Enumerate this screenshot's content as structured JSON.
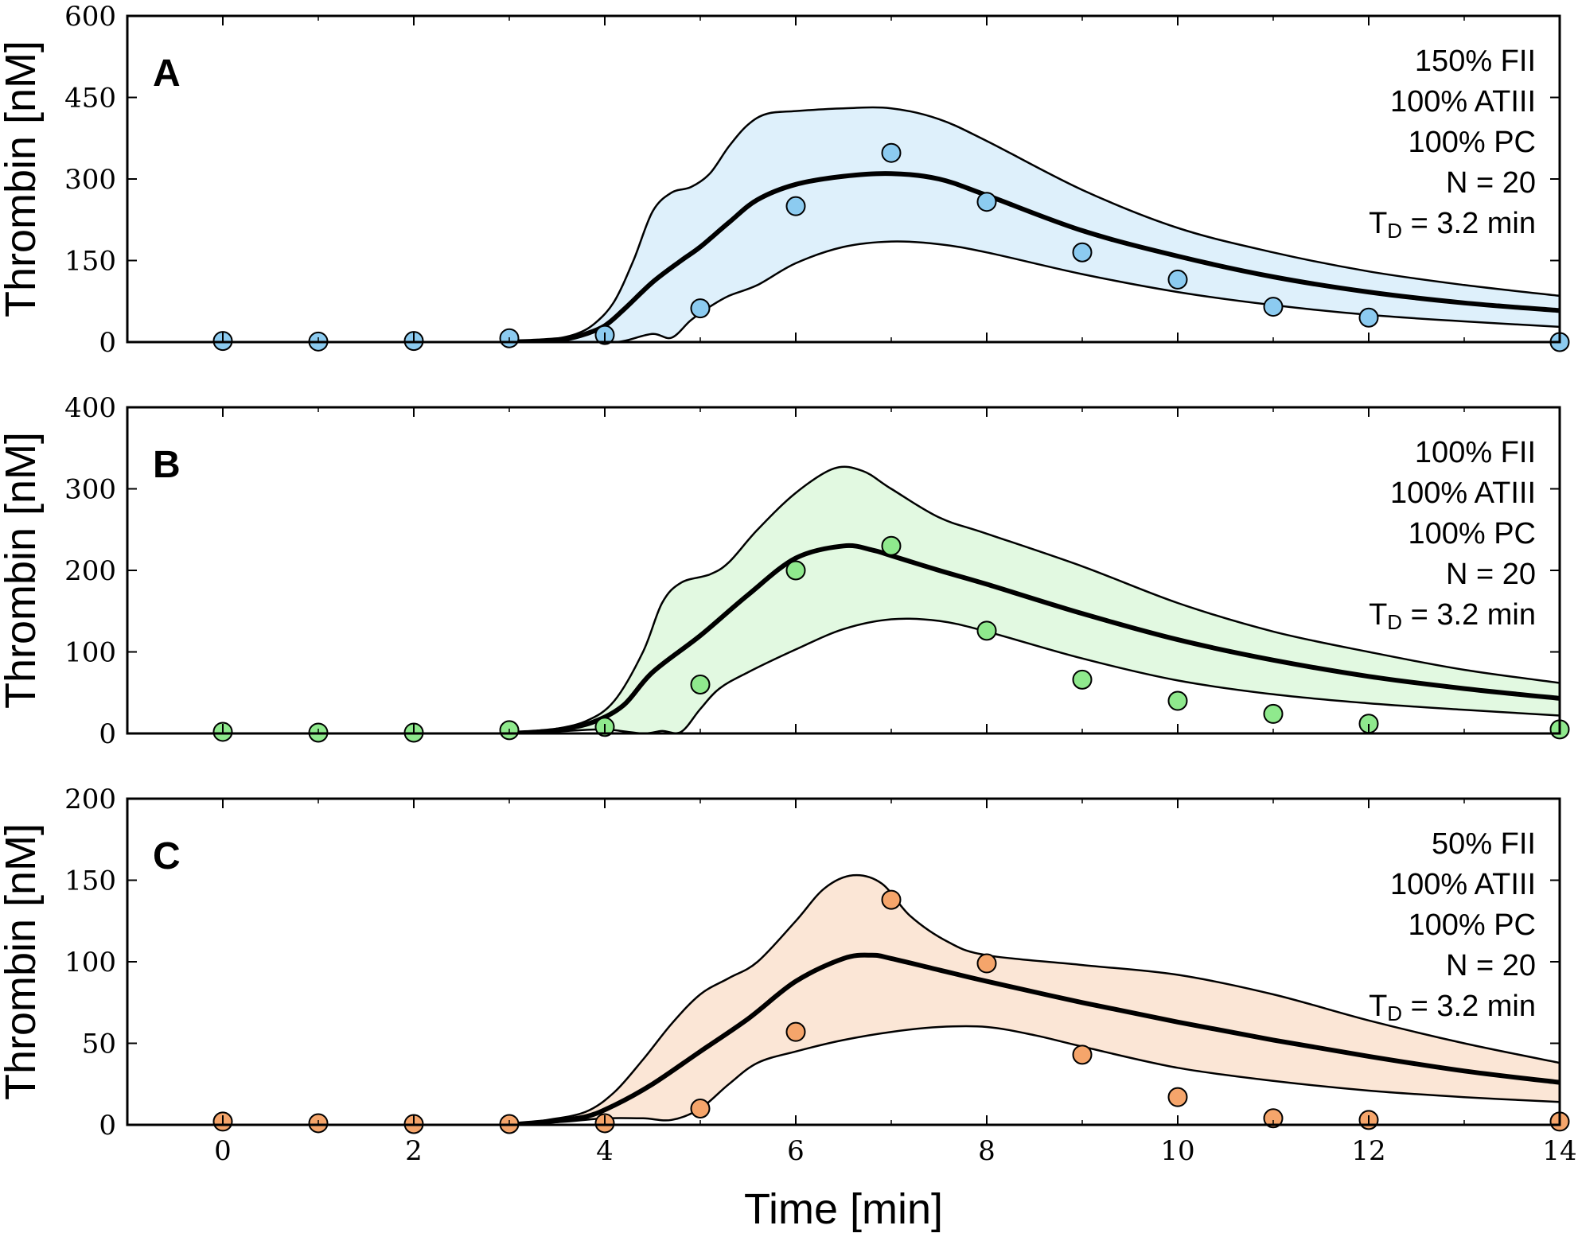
{
  "figure": {
    "xlabel": "Time [min]",
    "ylabel": "Thrombin [nM]"
  },
  "chart_data": [
    {
      "type": "line",
      "panel_label": "A",
      "xlabel": "Time [min]",
      "ylabel": "Thrombin [nM]",
      "xlim": [
        -1,
        14
      ],
      "ylim": [
        0,
        600
      ],
      "xticks": [
        "0",
        "2",
        "4",
        "6",
        "8",
        "10",
        "12",
        "14"
      ],
      "yticks": [
        "0",
        "150",
        "300",
        "450",
        "600"
      ],
      "grid": false,
      "colors": {
        "fill": "#def0fb",
        "marker": "#8ccbf0",
        "line": "#000000"
      },
      "annotations": {
        "fii": "150% FII",
        "atiii": "100% ATIII",
        "pc": "100% PC",
        "n": "N = 20",
        "td_main": "T",
        "td_sub": "D",
        "td_rest": " = 3.2 min"
      },
      "series": [
        {
          "kind": "mean",
          "x": [
            3.0,
            3.3,
            3.6,
            3.8,
            4.0,
            4.2,
            4.5,
            4.8,
            5.0,
            5.3,
            5.6,
            6.0,
            6.5,
            7.0,
            7.5,
            8.0,
            9.0,
            10.0,
            11.0,
            12.0,
            13.0,
            14.0
          ],
          "y": [
            0,
            2,
            6,
            15,
            30,
            60,
            110,
            150,
            175,
            220,
            262,
            290,
            305,
            310,
            300,
            270,
            205,
            158,
            120,
            92,
            72,
            58
          ]
        },
        {
          "kind": "upper",
          "x": [
            3.0,
            3.4,
            3.7,
            3.9,
            4.1,
            4.3,
            4.5,
            4.7,
            4.9,
            5.1,
            5.3,
            5.5,
            5.7,
            6.0,
            6.5,
            7.0,
            7.5,
            8.0,
            9.0,
            10.0,
            11.0,
            12.0,
            13.0,
            14.0
          ],
          "y": [
            0,
            4,
            15,
            35,
            75,
            150,
            240,
            275,
            285,
            310,
            360,
            400,
            420,
            425,
            430,
            430,
            410,
            370,
            280,
            210,
            165,
            130,
            105,
            85
          ]
        },
        {
          "kind": "lower",
          "x": [
            3.0,
            4.0,
            4.2,
            4.5,
            4.7,
            4.9,
            5.1,
            5.3,
            5.6,
            6.0,
            6.5,
            7.0,
            7.5,
            8.0,
            9.0,
            10.0,
            11.0,
            12.0,
            13.0,
            14.0
          ],
          "y": [
            0,
            0,
            2,
            15,
            8,
            40,
            65,
            85,
            105,
            145,
            175,
            185,
            180,
            165,
            125,
            92,
            68,
            50,
            38,
            28
          ]
        },
        {
          "kind": "data",
          "x": [
            0,
            1,
            2,
            3,
            4,
            5,
            6,
            7,
            8,
            9,
            10,
            11,
            12,
            14
          ],
          "y": [
            2,
            1,
            2,
            7,
            13,
            62,
            250,
            348,
            258,
            165,
            115,
            65,
            45,
            0
          ]
        }
      ]
    },
    {
      "type": "line",
      "panel_label": "B",
      "xlabel": "Time [min]",
      "ylabel": "Thrombin [nM]",
      "xlim": [
        -1,
        14
      ],
      "ylim": [
        0,
        400
      ],
      "xticks": [
        "0",
        "2",
        "4",
        "6",
        "8",
        "10",
        "12",
        "14"
      ],
      "yticks": [
        "0",
        "100",
        "200",
        "300",
        "400"
      ],
      "grid": false,
      "colors": {
        "fill": "#e2f9e1",
        "marker": "#8fe98d",
        "line": "#000000"
      },
      "annotations": {
        "fii": "100% FII",
        "atiii": "100% ATIII",
        "pc": "100% PC",
        "n": "N = 20",
        "td_main": "T",
        "td_sub": "D",
        "td_rest": " = 3.2 min"
      },
      "series": [
        {
          "kind": "mean",
          "x": [
            3.0,
            3.3,
            3.6,
            3.9,
            4.2,
            4.5,
            5.0,
            5.5,
            6.0,
            6.5,
            6.8,
            7.0,
            7.5,
            8.0,
            9.0,
            10.0,
            11.0,
            12.0,
            13.0,
            14.0
          ],
          "y": [
            0,
            2,
            6,
            15,
            35,
            75,
            120,
            170,
            215,
            230,
            225,
            218,
            200,
            183,
            147,
            115,
            90,
            70,
            55,
            43
          ]
        },
        {
          "kind": "upper",
          "x": [
            3.0,
            3.4,
            3.8,
            4.1,
            4.4,
            4.6,
            4.8,
            5.1,
            5.3,
            5.6,
            6.0,
            6.4,
            6.7,
            7.0,
            7.5,
            8.0,
            9.0,
            10.0,
            11.0,
            12.0,
            13.0,
            14.0
          ],
          "y": [
            0,
            4,
            15,
            40,
            100,
            160,
            185,
            195,
            210,
            250,
            295,
            325,
            322,
            300,
            265,
            245,
            205,
            160,
            125,
            100,
            78,
            62
          ]
        },
        {
          "kind": "lower",
          "x": [
            3.0,
            3.6,
            4.0,
            4.4,
            4.6,
            4.8,
            5.0,
            5.2,
            5.5,
            6.0,
            6.5,
            7.0,
            7.5,
            8.0,
            9.0,
            10.0,
            11.0,
            12.0,
            13.0,
            14.0
          ],
          "y": [
            0,
            3,
            5,
            0,
            3,
            2,
            30,
            55,
            75,
            103,
            128,
            140,
            138,
            125,
            92,
            65,
            48,
            37,
            29,
            22
          ]
        },
        {
          "kind": "data",
          "x": [
            0,
            1,
            2,
            3,
            4,
            5,
            6,
            7,
            8,
            9,
            10,
            11,
            12,
            14
          ],
          "y": [
            2,
            1,
            1,
            4,
            8,
            60,
            200,
            230,
            126,
            66,
            40,
            24,
            12,
            5
          ]
        }
      ]
    },
    {
      "type": "line",
      "panel_label": "C",
      "xlabel": "Time [min]",
      "ylabel": "Thrombin [nM]",
      "xlim": [
        -1,
        14
      ],
      "ylim": [
        0,
        200
      ],
      "xticks": [
        "0",
        "2",
        "4",
        "6",
        "8",
        "10",
        "12",
        "14"
      ],
      "yticks": [
        "0",
        "50",
        "100",
        "150",
        "200"
      ],
      "grid": false,
      "colors": {
        "fill": "#fbe6d6",
        "marker": "#f5a56b",
        "line": "#000000"
      },
      "annotations": {
        "fii": "50% FII",
        "atiii": "100%  ATIII",
        "pc": "100% PC",
        "n": "N = 20",
        "td_main": "T",
        "td_sub": "D",
        "td_rest": " = 3.2 min"
      },
      "series": [
        {
          "kind": "mean",
          "x": [
            3.0,
            3.4,
            3.8,
            4.1,
            4.5,
            5.0,
            5.5,
            6.0,
            6.5,
            6.8,
            7.0,
            7.5,
            8.0,
            9.0,
            10.0,
            11.0,
            12.0,
            13.0,
            14.0
          ],
          "y": [
            0,
            2,
            5,
            12,
            25,
            45,
            65,
            88,
            102,
            104,
            102,
            95,
            88,
            75,
            63,
            52,
            42,
            33,
            26
          ]
        },
        {
          "kind": "upper",
          "x": [
            3.0,
            3.4,
            3.8,
            4.1,
            4.4,
            4.7,
            5.0,
            5.3,
            5.6,
            6.0,
            6.3,
            6.6,
            6.9,
            7.2,
            7.6,
            8.0,
            9.0,
            10.0,
            11.0,
            12.0,
            13.0,
            14.0
          ],
          "y": [
            0,
            3,
            8,
            20,
            40,
            62,
            80,
            90,
            100,
            125,
            145,
            153,
            148,
            128,
            112,
            104,
            98,
            92,
            80,
            64,
            50,
            38
          ]
        },
        {
          "kind": "lower",
          "x": [
            3.0,
            3.6,
            4.0,
            4.4,
            4.7,
            5.0,
            5.3,
            5.6,
            6.0,
            6.5,
            7.0,
            7.5,
            8.0,
            8.5,
            9.0,
            10.0,
            11.0,
            12.0,
            13.0,
            14.0
          ],
          "y": [
            0,
            2,
            4,
            4,
            3,
            10,
            25,
            38,
            45,
            52,
            57,
            60,
            60,
            55,
            48,
            35,
            27,
            21,
            17,
            14
          ]
        },
        {
          "kind": "data",
          "x": [
            0,
            1,
            2,
            3,
            4,
            5,
            6,
            7,
            8,
            9,
            10,
            11,
            12,
            14
          ],
          "y": [
            2,
            1,
            0.5,
            0.5,
            1,
            10,
            57,
            138,
            99,
            43,
            17,
            4,
            3,
            2
          ]
        }
      ]
    }
  ]
}
